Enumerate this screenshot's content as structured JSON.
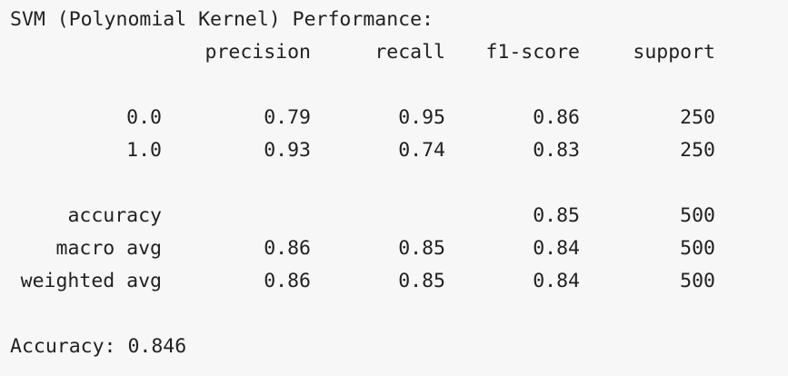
{
  "title": "SVM (Polynomial Kernel) Performance:",
  "headers": [
    "precision",
    "recall",
    "f1-score",
    "support"
  ],
  "class_rows": [
    {
      "label": "0.0",
      "precision": "0.79",
      "recall": "0.95",
      "f1": "0.86",
      "support": "250"
    },
    {
      "label": "1.0",
      "precision": "0.93",
      "recall": "0.74",
      "f1": "0.83",
      "support": "250"
    }
  ],
  "summary_rows": [
    {
      "label": "accuracy",
      "precision": "",
      "recall": "",
      "f1": "0.85",
      "support": "500"
    },
    {
      "label": "macro avg",
      "precision": "0.86",
      "recall": "0.85",
      "f1": "0.84",
      "support": "500"
    },
    {
      "label": "weighted avg",
      "precision": "0.86",
      "recall": "0.85",
      "f1": "0.84",
      "support": "500"
    }
  ],
  "accuracy_line": "Accuracy: 0.846"
}
